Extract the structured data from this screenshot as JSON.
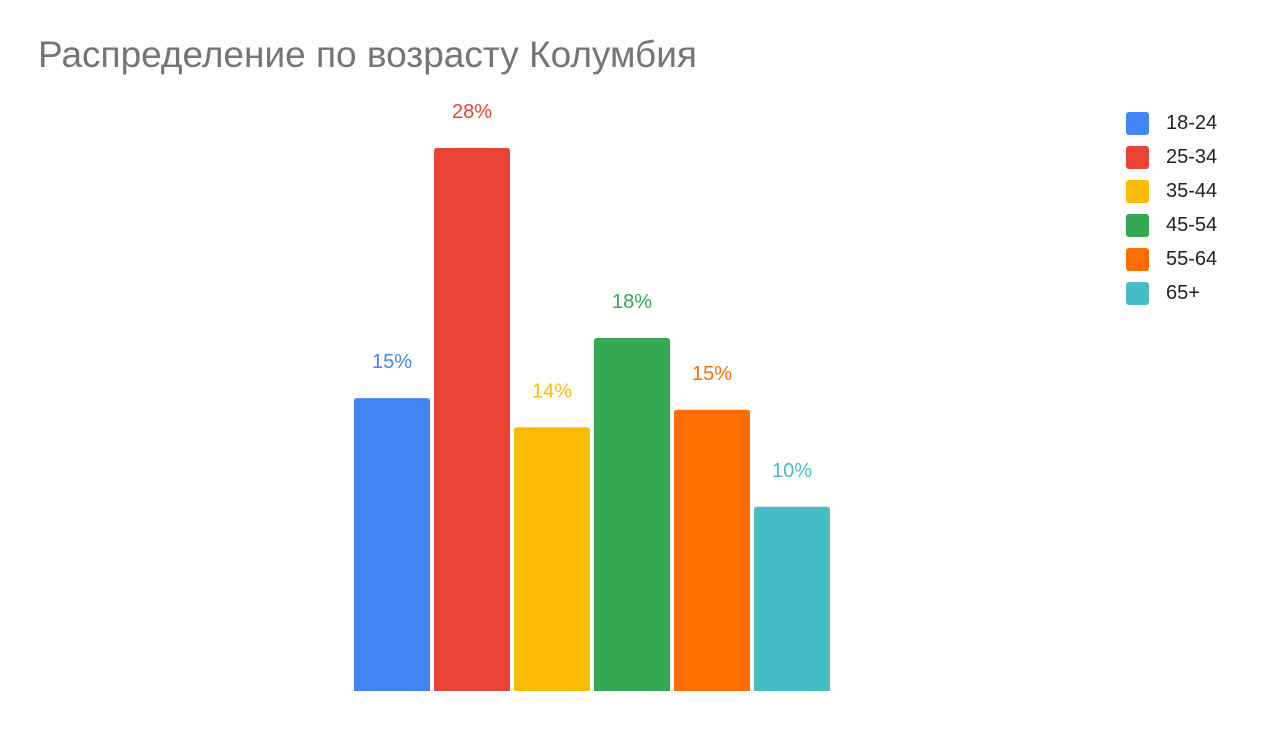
{
  "chart_data": {
    "type": "bar",
    "title": "Распределение по возрасту Колумбия",
    "xlabel": "",
    "ylabel": "",
    "ylim": [
      0,
      28
    ],
    "grid": false,
    "legend_position": "right",
    "categories": [
      "18-24",
      "25-34",
      "35-44",
      "45-54",
      "55-64",
      "65+"
    ],
    "values": [
      15.1,
      28,
      13.6,
      18.2,
      14.5,
      9.5
    ],
    "data_labels": [
      "15%",
      "28%",
      "14%",
      "18%",
      "15%",
      "10%"
    ],
    "colors": [
      "#4285F4",
      "#EA4335",
      "#FBBC04",
      "#34A853",
      "#FF6D01",
      "#46BDC6"
    ]
  }
}
